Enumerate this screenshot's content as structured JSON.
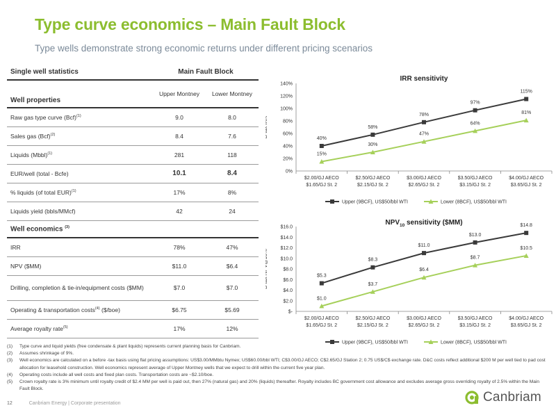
{
  "header": {
    "title": "Type curve economics – Main Fault Block",
    "subtitle": "Type wells demonstrate strong economic returns under different pricing scenarios"
  },
  "table": {
    "section_title": "Single well statistics",
    "group_header": "Main Fault Block",
    "properties_header": "Well properties",
    "col_upper": "Upper Montney",
    "col_lower": "Lower Montney",
    "properties_rows": [
      {
        "label": "Raw gas type curve (Bcf)",
        "sup": "(1)",
        "upper": "9.0",
        "lower": "8.0",
        "bold": false
      },
      {
        "label": "Sales gas (Bcf)",
        "sup": "(2)",
        "upper": "8.4",
        "lower": "7.6",
        "bold": false
      },
      {
        "label": "Liquids (Mbbl)",
        "sup": "(1)",
        "upper": "281",
        "lower": "118",
        "bold": false
      },
      {
        "label": "EUR/well (total - Bcfe)",
        "sup": "",
        "upper": "10.1",
        "lower": "8.4",
        "bold": true
      },
      {
        "label": "% liquids (of total EUR)",
        "sup": "(1)",
        "upper": "17%",
        "lower": "8%",
        "bold": false
      },
      {
        "label": "Liquids yield (bbls/MMcf)",
        "sup": "",
        "upper": "42",
        "lower": "24",
        "bold": false
      }
    ],
    "economics_header": "Well economics",
    "economics_sup": "(3)",
    "economics_rows": [
      {
        "label": "IRR",
        "sup": "",
        "upper": "78%",
        "lower": "47%"
      },
      {
        "label": "NPV ($MM)",
        "sup": "",
        "upper": "$11.0",
        "lower": "$6.4"
      },
      {
        "label": "Drilling, completion & tie-in/equipment costs ($MM)",
        "sup": "",
        "upper": "$7.0",
        "lower": "$7.0"
      },
      {
        "label": "Operating & transportation costs",
        "sup": "(4)",
        "suffix": " ($/boe)",
        "upper": "$6.75",
        "lower": "$5.69"
      },
      {
        "label": "Average royalty rate",
        "sup": "(5)",
        "upper": "17%",
        "lower": "12%"
      }
    ]
  },
  "footnotes": [
    {
      "num": "(1)",
      "text": "Type curve and liquid yields (free condensate & plant liquids) represents current planning basis for Canbriam."
    },
    {
      "num": "(2)",
      "text": "Assumes shrinkage of 9%."
    },
    {
      "num": "(3)",
      "text": "Well economics are calculated on a before -tax basis using flat pricing assumptions: US$3.00/MMbtu Nymex; US$60.00/bbl WTI; C$3.00/GJ AECO; C$2.65/GJ Station 2; 0.75 US$/C$ exchange rate. D&C costs reflect additional $200 M per well tied to pad cost allocation for leasehold construction. Well economics represent average of Upper Montney wells that we expect to drill within the current five year plan."
    },
    {
      "num": "(4)",
      "text": "Operating costs include all well costs and fixed plan costs. Transportation costs are ~$2.10/boe."
    },
    {
      "num": "(5)",
      "text": "Crown royalty rate is 3% minimum until royalty credit of $2.4 MM per well is paid out, then 27% (natural gas) and 20% (liquids) thereafter. Royalty includes BC government cost allowance and excludes average gross overriding royalty of 2.5% within the Main Fault Block."
    }
  ],
  "footer": {
    "page": "12",
    "company_text": "Canbriam Energy  |  Corporate presentation",
    "logo_text": "Canbriam"
  },
  "colors": {
    "title_green": "#8cbd2f",
    "upper_series": "#3a3a3a",
    "lower_series": "#a6d05a"
  },
  "chart_data": [
    {
      "type": "line",
      "title": "IRR sensitivity",
      "ylabel": "B-tax IRR",
      "categories": [
        [
          "$2.00/GJ AECO",
          "$1.65/GJ St. 2"
        ],
        [
          "$2.50/GJ AECO",
          "$2.15/GJ St. 2"
        ],
        [
          "$3.00/GJ AECO",
          "$2.65/GJ St. 2"
        ],
        [
          "$3.50/GJ AECO",
          "$3.15/GJ St. 2"
        ],
        [
          "$4.00/GJ AECO",
          "$3.65/GJ St. 2"
        ]
      ],
      "ylim": [
        0,
        140
      ],
      "yticks": [
        0,
        20,
        40,
        60,
        80,
        100,
        120,
        140
      ],
      "ytick_labels": [
        "0%",
        "20%",
        "40%",
        "60%",
        "80%",
        "100%",
        "120%",
        "140%"
      ],
      "series": [
        {
          "name": "Upper (9BCF), US$50/bbl WTI",
          "values": [
            40,
            58,
            78,
            97,
            115
          ],
          "labels": [
            "40%",
            "58%",
            "78%",
            "97%",
            "115%"
          ],
          "color": "#3a3a3a"
        },
        {
          "name": "Lower (8BCF), US$50/bbl WTI",
          "values": [
            15,
            30,
            47,
            64,
            81
          ],
          "labels": [
            "15%",
            "30%",
            "47%",
            "64%",
            "81%"
          ],
          "color": "#a6d05a"
        }
      ],
      "grid": false,
      "legend": "bottom"
    },
    {
      "type": "line",
      "title": "NPV10 sensitivity ($MM)",
      "title_main": "NPV",
      "title_sub": "10",
      "title_rest": " sensitivity ($MM)",
      "ylabel": "B-tax NPV@10%",
      "categories": [
        [
          "$2.00/GJ AECO",
          "$1.65/GJ St. 2"
        ],
        [
          "$2.50/GJ AECO",
          "$2.15/GJ St. 2"
        ],
        [
          "$3.00/GJ AECO",
          "$2.65/GJ St. 2"
        ],
        [
          "$3.50/GJ AECO",
          "$3.15/GJ St. 2"
        ],
        [
          "$4.00/GJ AECO",
          "$3.65/GJ St. 2"
        ]
      ],
      "ylim": [
        0,
        16
      ],
      "yticks": [
        0,
        2,
        4,
        6,
        8,
        10,
        12,
        14,
        16
      ],
      "ytick_labels": [
        "$-",
        "$2.0",
        "$4.0",
        "$6.0",
        "$8.0",
        "$10.0",
        "$12.0",
        "$14.0",
        "$16.0"
      ],
      "series": [
        {
          "name": "Upper (9BCF), US$50/bbl WTI",
          "values": [
            5.3,
            8.3,
            11.0,
            13.0,
            14.8
          ],
          "labels": [
            "$5.3",
            "$8.3",
            "$11.0",
            "$13.0",
            "$14.8"
          ],
          "color": "#3a3a3a"
        },
        {
          "name": "Lower (8BCF), US$50/bbl WTI",
          "values": [
            1.0,
            3.7,
            6.4,
            8.7,
            10.5
          ],
          "labels": [
            "$1.0",
            "$3.7",
            "$6.4",
            "$8.7",
            "$10.5"
          ],
          "color": "#a6d05a"
        }
      ],
      "grid": false,
      "legend": "bottom"
    }
  ]
}
